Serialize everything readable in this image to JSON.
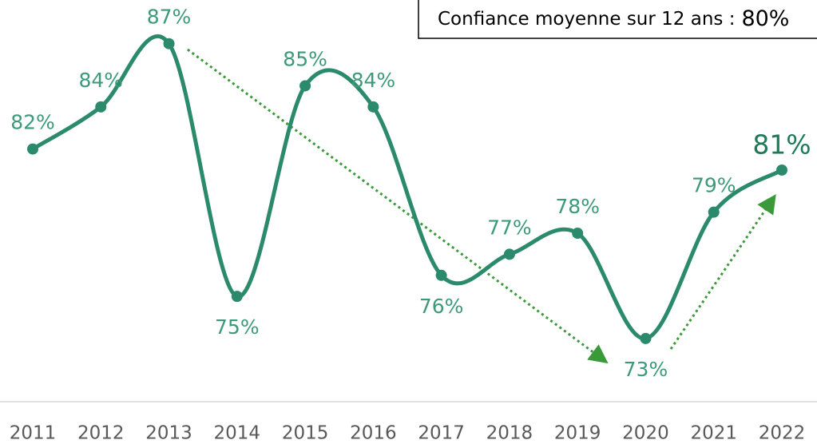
{
  "chart_data": {
    "type": "line",
    "annotation": {
      "text": "Confiance moyenne sur 12 ans :",
      "value_label": "80%"
    },
    "categories": [
      "2011",
      "2012",
      "2013",
      "2014",
      "2015",
      "2016",
      "2017",
      "2018",
      "2019",
      "2020",
      "2021",
      "2022"
    ],
    "series": [
      {
        "color": "#2a8a6b",
        "values": [
          82,
          84,
          87,
          75,
          85,
          84,
          76,
          77,
          78,
          73,
          79,
          81
        ],
        "value_labels": [
          "82%",
          "84%",
          "87%",
          "75%",
          "85%",
          "84%",
          "76%",
          "77%",
          "78%",
          "73%",
          "79%",
          "81%"
        ]
      }
    ],
    "ylim": [
      70,
      89
    ]
  }
}
